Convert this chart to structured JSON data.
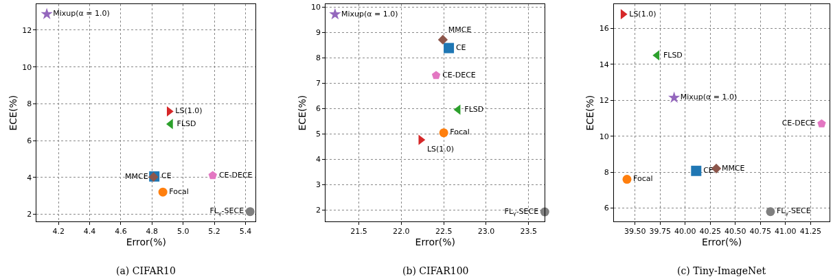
{
  "chart_data": [
    {
      "type": "scatter",
      "title": "(a) CIFAR10",
      "xlabel": "Error(%)",
      "ylabel": "ECE(%)",
      "grid": true,
      "xlim": [
        4.06,
        5.466
      ],
      "ylim": [
        1.6,
        13.41
      ],
      "xticks": [
        4.2,
        4.4,
        4.6,
        4.8,
        {
          "value": 5.0,
          "label": "5.0"
        },
        5.2,
        5.4
      ],
      "yticks": [
        2,
        4,
        6,
        8,
        10,
        12
      ],
      "series": [
        {
          "name": "CE",
          "color": "#1f77b4",
          "marker": "square",
          "x": [
            4.815
          ],
          "values": [
            4.05
          ]
        },
        {
          "name": "MMCE",
          "color": "#8c564b",
          "marker": "diamond",
          "x": [
            4.81
          ],
          "values": [
            4.02
          ]
        },
        {
          "name": "Focal",
          "color": "#ff7f0e",
          "marker": "circle",
          "x": [
            4.87
          ],
          "values": [
            3.2
          ]
        },
        {
          "name": "LS(1.0)",
          "color": "#d62728",
          "marker": "triangle-right",
          "x": [
            4.91
          ],
          "values": [
            7.58
          ]
        },
        {
          "name": "FLSD",
          "color": "#2ca02c",
          "marker": "triangle-left",
          "x": [
            4.92
          ],
          "values": [
            6.9
          ]
        },
        {
          "name": "Mixup(α = 1.0)",
          "color": "#9467bd",
          "marker": "star",
          "x": [
            4.125
          ],
          "values": [
            12.87
          ]
        },
        {
          "name": "CE-DECE",
          "color": "#e377c2",
          "x": [
            5.19
          ],
          "values": [
            4.1
          ]
        },
        {
          "name": "FL$_{γ}$-SECE",
          "color": "#7f7f7f",
          "marker": "circle",
          "x": [
            5.43
          ],
          "values": [
            2.14
          ]
        }
      ]
    },
    {
      "type": "scatter",
      "title": "(b) CIFAR100",
      "xlabel": "Error(%)",
      "ylabel": "ECE(%)",
      "grid": true,
      "xlim": [
        21.11,
        23.69
      ],
      "ylim": [
        1.55,
        10.12
      ],
      "xticks": [
        21.5,
        {
          "value": 22,
          "label": "22.0"
        },
        22.5,
        {
          "value": 23,
          "label": "23.0"
        },
        23.5
      ],
      "yticks": [
        2,
        3,
        4,
        5,
        6,
        7,
        8,
        9,
        10
      ],
      "series": [
        {
          "name": "CE",
          "color": "#1f77b4",
          "marker": "square",
          "x": [
            22.56
          ],
          "values": [
            8.39
          ]
        },
        {
          "name": "MMCE",
          "color": "#8c564b",
          "marker": "diamond",
          "x": [
            22.49
          ],
          "values": [
            8.72
          ]
        },
        {
          "name": "Focal",
          "color": "#ff7f0e",
          "marker": "circle",
          "x": [
            22.5
          ],
          "values": [
            5.05
          ]
        },
        {
          "name": "LS(1.0)",
          "color": "#d62728",
          "marker": "triangle-right",
          "x": [
            22.23
          ],
          "values": [
            4.77
          ]
        },
        {
          "name": "FLSD",
          "color": "#2ca02c",
          "marker": "triangle-left",
          "x": [
            22.67
          ],
          "values": [
            5.96
          ]
        },
        {
          "name": "Mixup(α = 1.0)",
          "color": "#9467bd",
          "marker": "star",
          "x": [
            21.22
          ],
          "values": [
            9.72
          ]
        },
        {
          "name": "CE-DECE",
          "color": "#e377c2",
          "x": [
            22.41
          ],
          "values": [
            7.31
          ]
        },
        {
          "name": "FL$_{γ}$-SECE",
          "color": "#7f7f7f",
          "marker": "circle",
          "x": [
            23.69
          ],
          "values": [
            1.93
          ]
        }
      ]
    },
    {
      "type": "scatter",
      "title": "(c) Tiny-ImageNet",
      "xlabel": "Error(%)",
      "ylabel": "ECE(%)",
      "grid": true,
      "xlim": [
        39.29,
        41.44
      ],
      "ylim": [
        5.25,
        17.35
      ],
      "xticks": [
        {
          "value": 39.5,
          "label": "39.50"
        },
        39.75,
        {
          "value": 40,
          "label": "40.00"
        },
        40.25,
        {
          "value": 40.5,
          "label": "40.50"
        },
        40.75,
        {
          "value": 41,
          "label": "41.00"
        },
        41.25
      ],
      "yticks": [
        6,
        8,
        10,
        12,
        14,
        16
      ],
      "series": [
        {
          "name": "CE",
          "color": "#1f77b4",
          "marker": "square",
          "x": [
            40.11
          ],
          "values": [
            8.07
          ]
        },
        {
          "name": "MMCE",
          "color": "#8c564b",
          "marker": "diamond",
          "x": [
            40.31
          ],
          "values": [
            8.2
          ]
        },
        {
          "name": "Focal",
          "color": "#ff7f0e",
          "marker": "circle",
          "x": [
            39.42
          ],
          "values": [
            7.6
          ]
        },
        {
          "name": "LS(1.0)",
          "color": "#d62728",
          "marker": "triangle-right",
          "x": [
            39.38
          ],
          "values": [
            16.79
          ]
        },
        {
          "name": "FLSD",
          "color": "#2ca02c",
          "marker": "triangle-left",
          "x": [
            39.72
          ],
          "values": [
            14.5
          ]
        },
        {
          "name": "Mixup(α = 1.0)",
          "color": "#9467bd",
          "marker": "star",
          "x": [
            39.89
          ],
          "values": [
            12.14
          ]
        },
        {
          "name": "CE-DECE",
          "color": "#e377c2",
          "x": [
            41.36
          ],
          "values": [
            10.69
          ]
        },
        {
          "name": "FL$_{γ}$-SECE",
          "color": "#7f7f7f",
          "marker": "circle",
          "x": [
            40.85
          ],
          "values": [
            5.8
          ]
        }
      ]
    }
  ]
}
